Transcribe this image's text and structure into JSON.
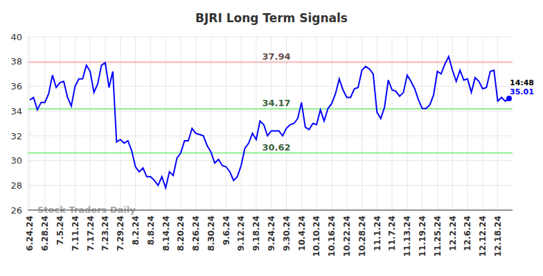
{
  "chart_data": {
    "type": "line",
    "title": "BJRI Long Term Signals",
    "watermark": "Stock Traders Daily",
    "time_label": "14:48",
    "categories": [
      "6.24.24",
      null,
      null,
      null,
      "6.28.24",
      null,
      null,
      null,
      "7.5.24",
      null,
      null,
      null,
      "7.11.24",
      null,
      null,
      null,
      "7.17.24",
      null,
      null,
      null,
      "7.23.24",
      null,
      null,
      null,
      "7.29.24",
      null,
      null,
      null,
      "8.2.24",
      null,
      null,
      null,
      "8.8.24",
      null,
      null,
      null,
      "8.14.24",
      null,
      null,
      null,
      "8.20.24",
      null,
      null,
      null,
      "8.26.24",
      null,
      null,
      null,
      "8.30.24",
      null,
      null,
      null,
      "9.6.24",
      null,
      null,
      null,
      "9.12.24",
      null,
      null,
      null,
      "9.18.24",
      null,
      null,
      null,
      "9.24.24",
      null,
      null,
      null,
      "9.30.24",
      null,
      null,
      null,
      "10.4.24",
      null,
      null,
      null,
      "10.10.24",
      null,
      null,
      null,
      "10.16.24",
      null,
      null,
      null,
      "10.22.24",
      null,
      null,
      null,
      "10.28.24",
      null,
      null,
      null,
      "11.1.24",
      null,
      null,
      null,
      "11.7.24",
      null,
      null,
      null,
      "11.13.24",
      null,
      null,
      null,
      "11.19.24",
      null,
      null,
      null,
      "11.25.24",
      null,
      null,
      null,
      "12.2.24",
      null,
      null,
      null,
      "12.6.24",
      null,
      null,
      null,
      "12.12.24",
      null,
      null,
      null,
      "12.18.24",
      null,
      null,
      null
    ],
    "series": [
      {
        "color": "#0000ff",
        "values": [
          34.9,
          35.1,
          34.1,
          34.7,
          34.7,
          35.4,
          36.9,
          35.9,
          36.3,
          36.4,
          35.1,
          34.4,
          36.0,
          36.6,
          36.6,
          37.7,
          37.2,
          35.5,
          36.2,
          37.7,
          37.9,
          35.9,
          37.2,
          31.5,
          31.7,
          31.4,
          31.6,
          30.8,
          29.5,
          29.1,
          29.4,
          28.7,
          28.7,
          28.4,
          28.0,
          28.7,
          27.8,
          29.1,
          28.8,
          30.2,
          30.6,
          31.6,
          31.6,
          32.6,
          32.2,
          32.1,
          32.0,
          31.2,
          30.7,
          29.8,
          30.1,
          29.6,
          29.5,
          29.1,
          28.4,
          28.7,
          29.6,
          31.0,
          31.4,
          32.2,
          31.7,
          33.2,
          32.9,
          32.0,
          32.4,
          32.4,
          32.4,
          32.0,
          32.6,
          32.9,
          33.0,
          33.4,
          34.7,
          32.7,
          32.5,
          33.0,
          32.9,
          34.1,
          33.2,
          34.2,
          34.6,
          35.4,
          36.6,
          35.7,
          35.1,
          35.1,
          35.8,
          35.9,
          37.3,
          37.6,
          37.4,
          37.0,
          33.9,
          33.4,
          34.3,
          36.5,
          35.7,
          35.6,
          35.2,
          35.5,
          36.9,
          36.4,
          35.8,
          34.9,
          34.2,
          34.2,
          34.5,
          35.3,
          37.2,
          37.0,
          37.8,
          38.4,
          37.3,
          36.4,
          37.3,
          36.5,
          36.6,
          35.5,
          36.7,
          36.4,
          35.8,
          35.9,
          37.2,
          37.3,
          34.8,
          35.1,
          34.8,
          35.01
        ]
      }
    ],
    "reference_lines": [
      {
        "value": 37.94,
        "color": "#ffbbbb"
      },
      {
        "value": 34.17,
        "color": "#90ee90"
      },
      {
        "value": 30.62,
        "color": "#90ee90"
      }
    ],
    "ylim": [
      26,
      40
    ],
    "yticks": [
      26,
      28,
      30,
      32,
      34,
      36,
      38,
      40
    ],
    "grid": true
  }
}
